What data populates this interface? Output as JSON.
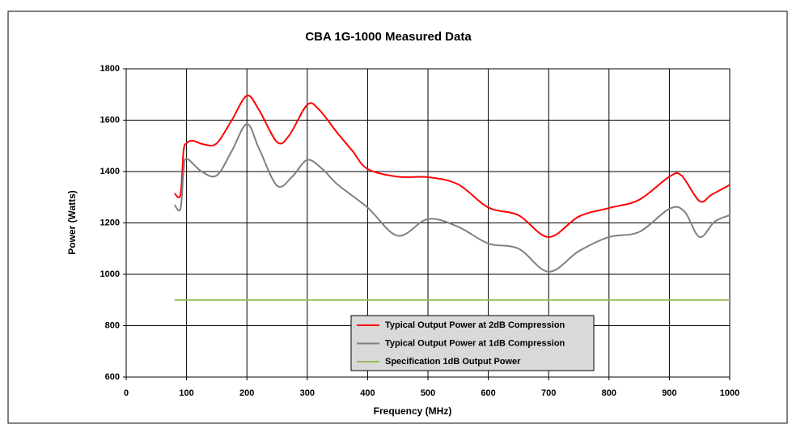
{
  "chart_data": {
    "type": "line",
    "title": "CBA 1G-1000 Measured Data",
    "x_label": "Frequency (MHz)",
    "y_label": "Power (Watts)",
    "xlim": [
      0,
      1000
    ],
    "xticks": [
      0,
      100,
      200,
      300,
      400,
      500,
      600,
      700,
      800,
      900,
      1000
    ],
    "ylim": [
      600,
      1800
    ],
    "yticks": [
      600,
      800,
      1000,
      1200,
      1400,
      1600,
      1800
    ],
    "grid": true,
    "legend": "lower center",
    "series": [
      {
        "name": "Typical Output Power at 2dB Compression",
        "color": "#ff0000",
        "x": [
          80,
          90,
          95,
          100,
          110,
          130,
          150,
          175,
          200,
          220,
          250,
          270,
          300,
          320,
          350,
          375,
          400,
          450,
          500,
          550,
          600,
          650,
          700,
          750,
          800,
          850,
          900,
          920,
          950,
          970,
          1000
        ],
        "values": [
          1315,
          1310,
          1480,
          1510,
          1520,
          1505,
          1510,
          1600,
          1695,
          1640,
          1515,
          1540,
          1660,
          1640,
          1550,
          1480,
          1410,
          1380,
          1378,
          1350,
          1260,
          1230,
          1145,
          1225,
          1258,
          1290,
          1380,
          1385,
          1285,
          1310,
          1348
        ]
      },
      {
        "name": "Typical Output Power at 1dB Compression",
        "color": "#808080",
        "x": [
          80,
          90,
          95,
          100,
          125,
          150,
          175,
          200,
          220,
          250,
          275,
          300,
          325,
          350,
          400,
          450,
          500,
          550,
          600,
          650,
          700,
          750,
          800,
          850,
          900,
          925,
          950,
          975,
          1000
        ],
        "values": [
          1270,
          1255,
          1400,
          1450,
          1400,
          1385,
          1480,
          1585,
          1490,
          1345,
          1380,
          1445,
          1410,
          1350,
          1260,
          1150,
          1215,
          1185,
          1120,
          1100,
          1010,
          1090,
          1145,
          1165,
          1255,
          1245,
          1145,
          1205,
          1230
        ]
      },
      {
        "name": "Specification 1dB Output Power",
        "color": "#9bbb59",
        "x": [
          80,
          1000
        ],
        "values": [
          900,
          900
        ]
      }
    ]
  }
}
